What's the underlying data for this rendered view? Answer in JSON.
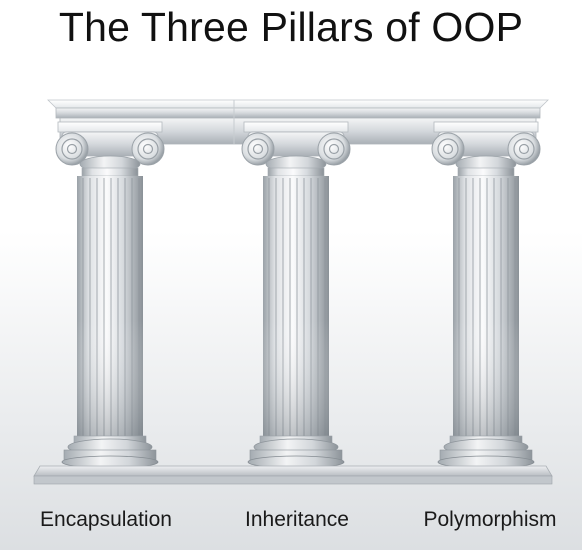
{
  "title": "The Three Pillars of OOP",
  "pillars": [
    {
      "label": "Encapsulation"
    },
    {
      "label": "Inheritance"
    },
    {
      "label": "Polymorphism"
    }
  ],
  "colors": {
    "marble_light": "#f7f8f9",
    "marble_mid": "#c9cdd1",
    "marble_dark": "#8e959b",
    "text": "#111111"
  }
}
